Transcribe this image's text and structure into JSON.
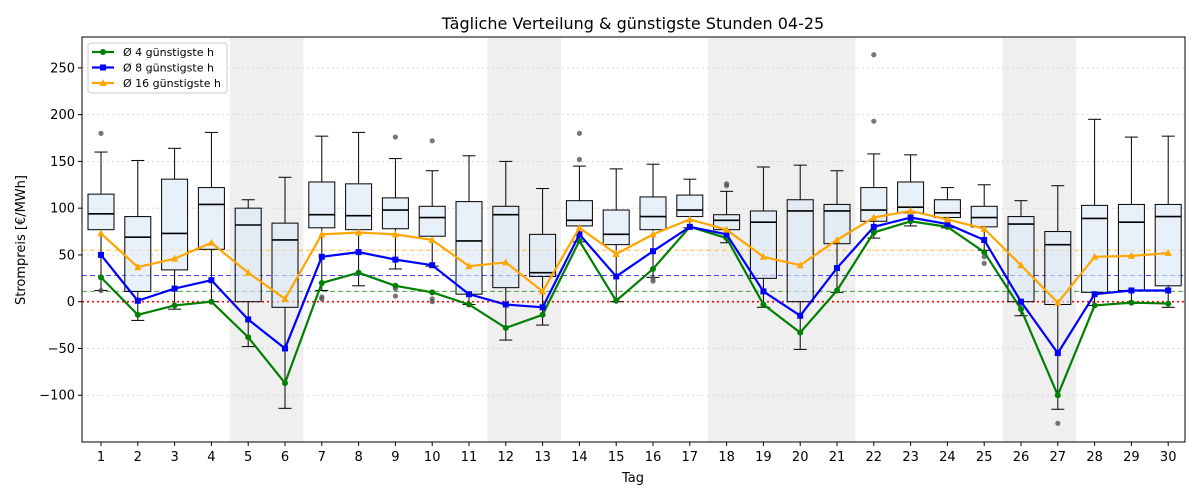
{
  "chart_data": {
    "type": "box+line",
    "title": "Tägliche Verteilung & günstigste Stunden 04-25",
    "xlabel": "Tag",
    "ylabel": "Strompreis [€/MWh]",
    "ylim": [
      -150,
      283
    ],
    "yticks": [
      -100,
      -50,
      0,
      50,
      100,
      150,
      200,
      250
    ],
    "days": [
      1,
      2,
      3,
      4,
      5,
      6,
      7,
      8,
      9,
      10,
      11,
      12,
      13,
      14,
      15,
      16,
      17,
      18,
      19,
      20,
      21,
      22,
      23,
      24,
      25,
      26,
      27,
      28,
      29,
      30
    ],
    "weekend_days": [
      5,
      6,
      12,
      13,
      18,
      19,
      20,
      21,
      26,
      27
    ],
    "grid": "y",
    "legend_position": "upper-left",
    "boxes": [
      {
        "day": 1,
        "whislo": 12,
        "q1": 77,
        "med": 94,
        "q3": 115,
        "whishi": 160,
        "fliers": [
          180,
          12
        ]
      },
      {
        "day": 2,
        "whislo": -20,
        "q1": 11,
        "med": 69,
        "q3": 91,
        "whishi": 151,
        "fliers": []
      },
      {
        "day": 3,
        "whislo": -8,
        "q1": 34,
        "med": 73,
        "q3": 131,
        "whishi": 164,
        "fliers": []
      },
      {
        "day": 4,
        "whislo": 0,
        "q1": 56,
        "med": 104,
        "q3": 122,
        "whishi": 181,
        "fliers": []
      },
      {
        "day": 5,
        "whislo": -48,
        "q1": 0,
        "med": 82,
        "q3": 100,
        "whishi": 109,
        "fliers": []
      },
      {
        "day": 6,
        "whislo": -114,
        "q1": -6,
        "med": 66,
        "q3": 84,
        "whishi": 133,
        "fliers": []
      },
      {
        "day": 7,
        "whislo": 12,
        "q1": 79,
        "med": 93,
        "q3": 128,
        "whishi": 177,
        "fliers": [
          3,
          5
        ]
      },
      {
        "day": 8,
        "whislo": 17,
        "q1": 77,
        "med": 92,
        "q3": 126,
        "whishi": 181,
        "fliers": []
      },
      {
        "day": 9,
        "whislo": 35,
        "q1": 78,
        "med": 98,
        "q3": 111,
        "whishi": 153,
        "fliers": [
          176,
          6,
          14
        ]
      },
      {
        "day": 10,
        "whislo": 38,
        "q1": 70,
        "med": 90,
        "q3": 102,
        "whishi": 140,
        "fliers": [
          172,
          0,
          3
        ]
      },
      {
        "day": 11,
        "whislo": -3,
        "q1": 8,
        "med": 65,
        "q3": 107,
        "whishi": 156,
        "fliers": []
      },
      {
        "day": 12,
        "whislo": -41,
        "q1": 15,
        "med": 93,
        "q3": 102,
        "whishi": 150,
        "fliers": []
      },
      {
        "day": 13,
        "whislo": -25,
        "q1": 27,
        "med": 31,
        "q3": 72,
        "whishi": 121,
        "fliers": []
      },
      {
        "day": 14,
        "whislo": 64,
        "q1": 81,
        "med": 87,
        "q3": 108,
        "whishi": 145,
        "fliers": [
          180,
          152
        ]
      },
      {
        "day": 15,
        "whislo": 0,
        "q1": 61,
        "med": 72,
        "q3": 98,
        "whishi": 142,
        "fliers": []
      },
      {
        "day": 16,
        "whislo": 26,
        "q1": 77,
        "med": 91,
        "q3": 112,
        "whishi": 147,
        "fliers": [
          22,
          25
        ]
      },
      {
        "day": 17,
        "whislo": 79,
        "q1": 91,
        "med": 98,
        "q3": 114,
        "whishi": 131,
        "fliers": []
      },
      {
        "day": 18,
        "whislo": 63,
        "q1": 77,
        "med": 87,
        "q3": 93,
        "whishi": 118,
        "fliers": [
          126,
          124
        ]
      },
      {
        "day": 19,
        "whislo": -6,
        "q1": 25,
        "med": 85,
        "q3": 97,
        "whishi": 144,
        "fliers": []
      },
      {
        "day": 20,
        "whislo": -51,
        "q1": 0,
        "med": 97,
        "q3": 109,
        "whishi": 146,
        "fliers": []
      },
      {
        "day": 21,
        "whislo": 10,
        "q1": 62,
        "med": 97,
        "q3": 104,
        "whishi": 140,
        "fliers": []
      },
      {
        "day": 22,
        "whislo": 68,
        "q1": 86,
        "med": 98,
        "q3": 122,
        "whishi": 158,
        "fliers": [
          264,
          193
        ]
      },
      {
        "day": 23,
        "whislo": 81,
        "q1": 95,
        "med": 101,
        "q3": 128,
        "whishi": 157,
        "fliers": []
      },
      {
        "day": 24,
        "whislo": 79,
        "q1": 90,
        "med": 95,
        "q3": 109,
        "whishi": 122,
        "fliers": []
      },
      {
        "day": 25,
        "whislo": 55,
        "q1": 80,
        "med": 90,
        "q3": 102,
        "whishi": 125,
        "fliers": [
          48,
          41
        ]
      },
      {
        "day": 26,
        "whislo": -15,
        "q1": 0,
        "med": 83,
        "q3": 91,
        "whishi": 108,
        "fliers": []
      },
      {
        "day": 27,
        "whislo": -115,
        "q1": -3,
        "med": 61,
        "q3": 75,
        "whishi": 124,
        "fliers": [
          -130
        ]
      },
      {
        "day": 28,
        "whislo": -4,
        "q1": 10,
        "med": 89,
        "q3": 103,
        "whishi": 195,
        "fliers": []
      },
      {
        "day": 29,
        "whislo": -2,
        "q1": 12,
        "med": 85,
        "q3": 104,
        "whishi": 176,
        "fliers": []
      },
      {
        "day": 30,
        "whislo": -6,
        "q1": 17,
        "med": 91,
        "q3": 104,
        "whishi": 177,
        "fliers": []
      }
    ],
    "series": [
      {
        "name": "Ø 4 günstigste h",
        "color": "#008000",
        "marker": "circle",
        "values": [
          26,
          -14,
          -4,
          0,
          -38,
          -87,
          20,
          31,
          17,
          10,
          -3,
          -28,
          -14,
          65,
          1,
          35,
          80,
          68,
          -3,
          -33,
          12,
          74,
          86,
          80,
          53,
          -8,
          -100,
          -4,
          -1,
          -2
        ]
      },
      {
        "name": "Ø 8 günstigste h",
        "color": "#0000ff",
        "marker": "square",
        "values": [
          50,
          1,
          14,
          23,
          -19,
          -50,
          48,
          53,
          45,
          39,
          8,
          -3,
          -6,
          72,
          27,
          54,
          80,
          72,
          11,
          -15,
          36,
          80,
          90,
          83,
          66,
          0,
          -55,
          8,
          12,
          12
        ]
      },
      {
        "name": "Ø 16 günstigste h",
        "color": "#ffa500",
        "marker": "triangle",
        "values": [
          73,
          37,
          46,
          63,
          31,
          3,
          72,
          74,
          72,
          66,
          38,
          42,
          11,
          79,
          51,
          72,
          88,
          77,
          48,
          39,
          66,
          90,
          97,
          88,
          78,
          39,
          -1,
          48,
          49,
          52
        ]
      }
    ],
    "reference_lines": [
      {
        "y": 55,
        "color": "#ffa500",
        "style": "dashed"
      },
      {
        "y": 28,
        "color": "#0000ff",
        "style": "dashed"
      },
      {
        "y": 11,
        "color": "#008000",
        "style": "dashed"
      },
      {
        "y": 0,
        "color": "#ff0000",
        "style": "dotted"
      }
    ]
  }
}
